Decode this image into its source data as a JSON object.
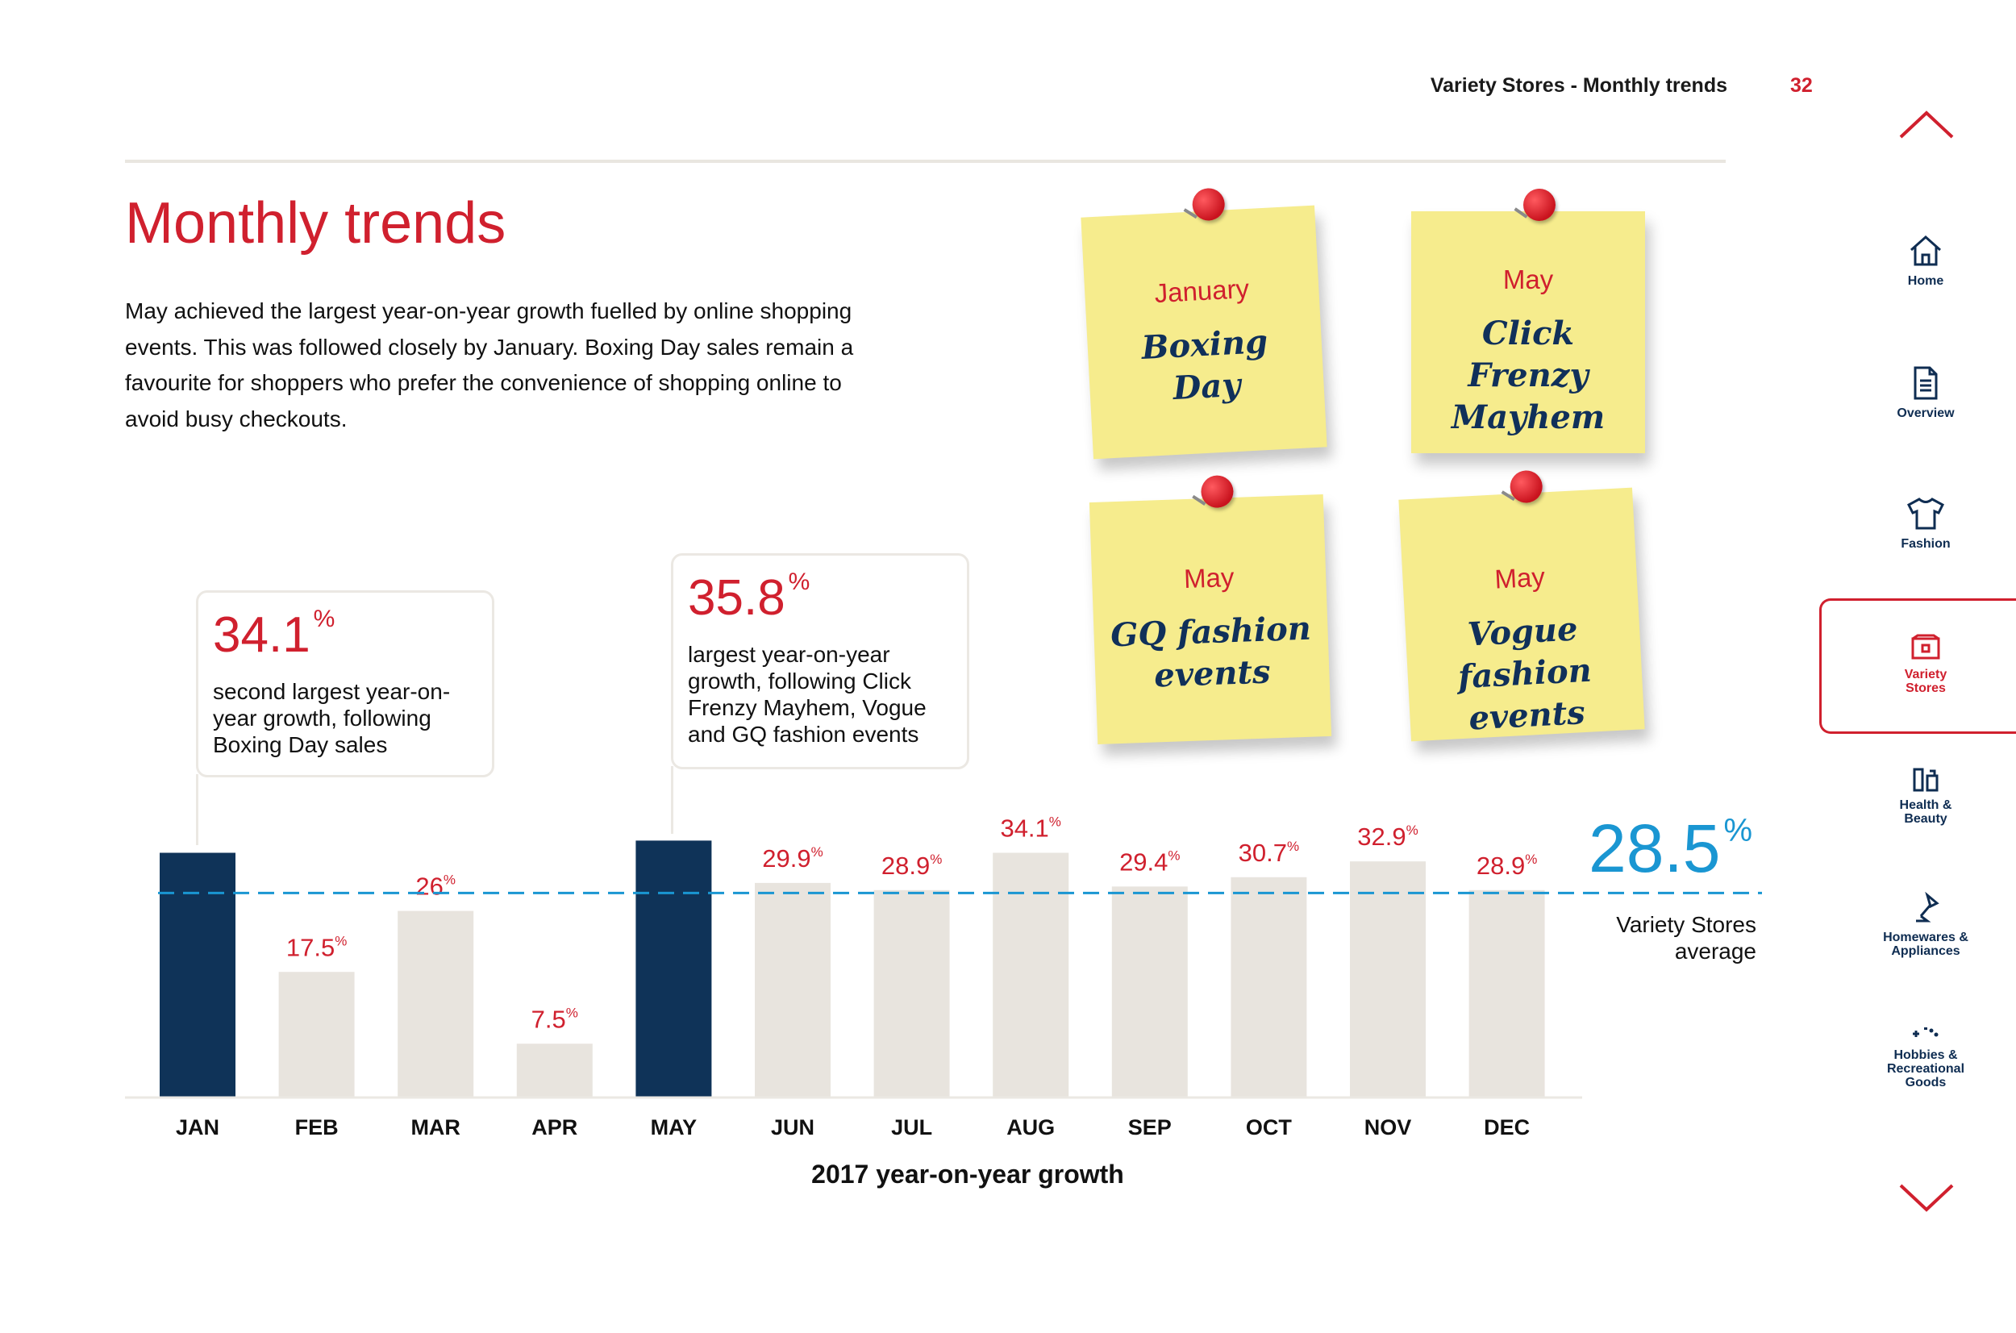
{
  "header": {
    "section": "Variety Stores - Monthly trends",
    "page_number": "32"
  },
  "title": "Monthly trends",
  "intro": "May achieved the largest year-on-year growth fuelled by online shopping events. This was followed closely by January. Boxing Day sales remain a favourite for shoppers who prefer the convenience of shopping online to avoid busy checkouts.",
  "callouts": [
    {
      "value": "34.1",
      "unit": "%",
      "text": "second largest year-on-year growth, following Boxing Day sales"
    },
    {
      "value": "35.8",
      "unit": "%",
      "text": "largest year-on-year growth, following Click Frenzy Mayhem, Vogue and GQ fashion events"
    }
  ],
  "notes": [
    {
      "month": "January",
      "event": "Boxing Day"
    },
    {
      "month": "May",
      "event": "Click Frenzy Mayhem"
    },
    {
      "month": "May",
      "event": "GQ fashion events"
    },
    {
      "month": "May",
      "event": "Vogue fashion events"
    }
  ],
  "average": {
    "value": "28.5",
    "unit": "%",
    "label": "Variety Stores average"
  },
  "nav": {
    "home": "Home",
    "overview": "Overview",
    "fashion": "Fashion",
    "variety": "Variety Stores",
    "health": "Health & Beauty",
    "homewares": "Homewares & Appliances",
    "hobbies": "Hobbies & Recreational Goods"
  },
  "colors": {
    "accent": "#d0202e",
    "highlight_bar": "#0f3358",
    "bar": "#e8e4de",
    "average_line": "#1a96d2"
  },
  "chart_data": {
    "type": "bar",
    "categories": [
      "JAN",
      "FEB",
      "MAR",
      "APR",
      "MAY",
      "JUN",
      "JUL",
      "AUG",
      "SEP",
      "OCT",
      "NOV",
      "DEC"
    ],
    "values": [
      34.1,
      17.5,
      26,
      7.5,
      35.8,
      29.9,
      28.9,
      34.1,
      29.4,
      30.7,
      32.9,
      28.9
    ],
    "value_labels": [
      "",
      "17.5",
      "26",
      "7.5",
      "",
      "29.9",
      "28.9",
      "34.1",
      "29.4",
      "30.7",
      "32.9",
      "28.9"
    ],
    "label_unit": "%",
    "highlighted": [
      "JAN",
      "MAY"
    ],
    "reference_line": 28.5,
    "xlabel": "2017 year-on-year growth",
    "ylabel": "",
    "ylim": [
      0,
      40
    ],
    "grid": false,
    "legend": "none"
  }
}
